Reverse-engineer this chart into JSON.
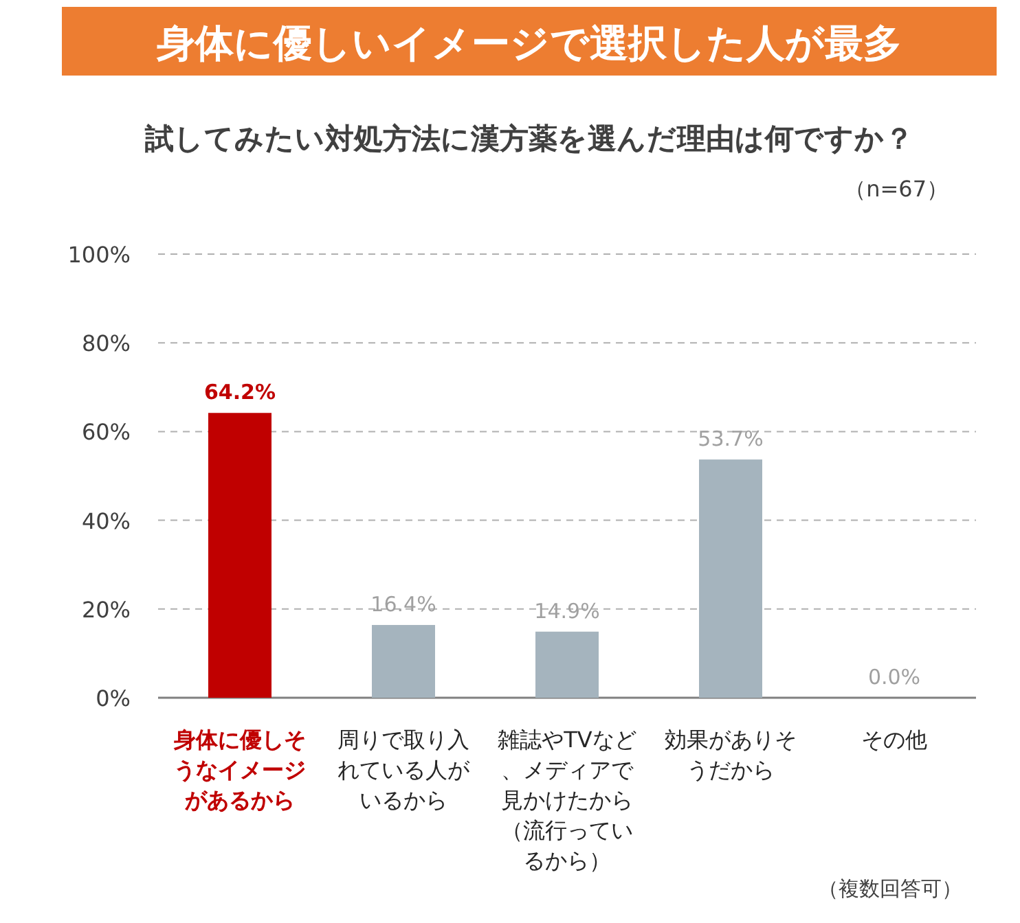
{
  "chart_data": {
    "type": "bar",
    "title": "身体に優しいイメージで選択した人が最多",
    "subtitle": "試してみたい対処方法に漢方薬を選んだ理由は何ですか？",
    "categories": [
      "身体に優しそうなイメージがあるから",
      "周りで取り入れている人がいるから",
      "雑誌やTVなど、メディアで見かけたから（流行っているから）",
      "効果がありそうだから",
      "その他"
    ],
    "values": [
      64.2,
      16.4,
      14.9,
      53.7,
      0.0
    ],
    "value_labels": [
      "64.2%",
      "16.4%",
      "14.9%",
      "53.7%",
      "0.0%"
    ],
    "colors": [
      "#c00000",
      "#a5b4be",
      "#a5b4be",
      "#a5b4be",
      "#a5b4be"
    ],
    "ylim": [
      0,
      100
    ],
    "yticks": [
      {
        "value": 0,
        "label": "0%"
      },
      {
        "value": 20,
        "label": "20%"
      },
      {
        "value": 40,
        "label": "40%"
      },
      {
        "value": 60,
        "label": "60%"
      },
      {
        "value": 80,
        "label": "80%"
      },
      {
        "value": 100,
        "label": "100%"
      }
    ],
    "grid": "y",
    "line_style": "dashed",
    "annotations": [
      "（n=67）",
      "（複数回答可）"
    ]
  }
}
